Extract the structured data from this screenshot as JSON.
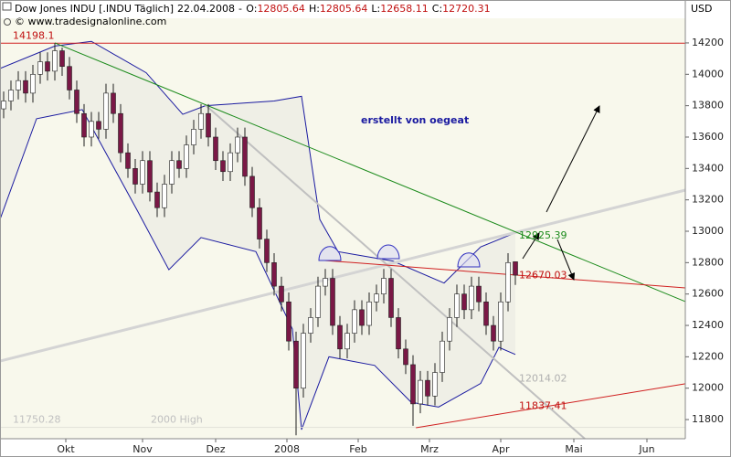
{
  "header": {
    "title": "Dow Jones INDU [.INDU Täglich]",
    "date": "22.04.2008",
    "separator": "-",
    "ohlc_labels": [
      "O:",
      "H:",
      "L:",
      "C:"
    ],
    "copyright": "© www.tradesignalonline.com"
  },
  "chart_data": {
    "type": "candlestick",
    "ylabel": "USD",
    "note": "erstellt von oegeat",
    "xlim": [
      -0.5,
      93.25
    ],
    "xticks": [
      {
        "value": 8.5,
        "label": "Okt"
      },
      {
        "value": 19,
        "label": "Nov"
      },
      {
        "value": 29,
        "label": "Dez"
      },
      {
        "value": 38.75,
        "label": "2008"
      },
      {
        "value": 48.5,
        "label": "Feb"
      },
      {
        "value": 58.25,
        "label": "Mrz"
      },
      {
        "value": 68,
        "label": "Apr"
      },
      {
        "value": 78,
        "label": "Mai"
      },
      {
        "value": 88,
        "label": "Jun"
      }
    ],
    "ylim": [
      11678,
      14357
    ],
    "yticks": [
      11800,
      12000,
      12200,
      12400,
      12600,
      12800,
      13000,
      13200,
      13400,
      13600,
      13800,
      14000,
      14200
    ],
    "grid": false,
    "up_color": "#ffffff",
    "down_color": "#7a1846",
    "outline_color": "#202020",
    "series": {
      "open": [
        13780,
        13830,
        13900,
        13960,
        13880,
        14000,
        14080,
        14020,
        14150,
        14050,
        13900,
        13750,
        13600,
        13700,
        13650,
        13880,
        13750,
        13500,
        13400,
        13300,
        13450,
        13250,
        13150,
        13300,
        13450,
        13400,
        13550,
        13650,
        13750,
        13600,
        13450,
        13380,
        13500,
        13600,
        13350,
        13150,
        12950,
        12800,
        12650,
        12550,
        12300,
        12000,
        12350,
        12450,
        12650,
        12700,
        12400,
        12250,
        12350,
        12500,
        12400,
        12550,
        12600,
        12700,
        12450,
        12250,
        12150,
        11900,
        12050,
        11950,
        12100,
        12300,
        12450,
        12600,
        12500,
        12650,
        12550,
        12400,
        12300,
        12550,
        12805.64
      ],
      "high": [
        13890,
        13960,
        14020,
        14020,
        14060,
        14140,
        14140,
        14198.1,
        14170,
        14110,
        13960,
        13810,
        13760,
        13760,
        13940,
        13940,
        13810,
        13560,
        13460,
        13510,
        13510,
        13310,
        13360,
        13510,
        13510,
        13610,
        13710,
        13810,
        13810,
        13660,
        13510,
        13560,
        13660,
        13660,
        13410,
        13210,
        13010,
        12860,
        12710,
        12610,
        12360,
        12410,
        12510,
        12710,
        12760,
        12760,
        12460,
        12410,
        12560,
        12560,
        12610,
        12660,
        12760,
        12760,
        12510,
        12310,
        12210,
        12110,
        12110,
        12160,
        12360,
        12510,
        12660,
        12660,
        12710,
        12710,
        12610,
        12460,
        12610,
        12860,
        12805.64
      ],
      "low": [
        13720,
        13770,
        13840,
        13820,
        13820,
        13940,
        13960,
        13960,
        13990,
        13840,
        13690,
        13540,
        13540,
        13590,
        13590,
        13690,
        13440,
        13340,
        13240,
        13240,
        13190,
        13090,
        13090,
        13240,
        13340,
        13340,
        13490,
        13590,
        13540,
        13390,
        13320,
        13320,
        13440,
        13290,
        13090,
        12890,
        12740,
        12590,
        12490,
        12240,
        11700,
        11940,
        12290,
        12390,
        12590,
        12340,
        12190,
        12190,
        12290,
        12340,
        12340,
        12490,
        12540,
        12390,
        12190,
        12090,
        11760,
        11840,
        11890,
        11890,
        12040,
        12240,
        12390,
        12440,
        12440,
        12490,
        12340,
        12240,
        12240,
        12490,
        12658.11
      ],
      "close": [
        13830,
        13900,
        13960,
        13880,
        14000,
        14080,
        14020,
        14150,
        14050,
        13900,
        13750,
        13600,
        13700,
        13650,
        13880,
        13750,
        13500,
        13400,
        13300,
        13450,
        13250,
        13150,
        13300,
        13450,
        13400,
        13550,
        13650,
        13750,
        13600,
        13450,
        13380,
        13500,
        13600,
        13350,
        13150,
        12950,
        12800,
        12650,
        12550,
        12300,
        12000,
        12350,
        12450,
        12650,
        12700,
        12400,
        12250,
        12350,
        12500,
        12400,
        12550,
        12600,
        12700,
        12450,
        12250,
        12150,
        11900,
        12050,
        11950,
        12100,
        12300,
        12450,
        12600,
        12500,
        12650,
        12550,
        12400,
        12300,
        12550,
        12800,
        12720.31
      ]
    },
    "bands": {
      "color": "#1a1aa0",
      "fill": "#efefe6",
      "upper": {
        "x": [
          -0.5,
          7,
          12,
          19.5,
          24.5,
          27.6,
          37,
          40.75,
          43.25,
          45.75,
          53.25,
          60.25,
          65.25,
          70
        ],
        "values": [
          14037,
          14180,
          14210,
          14010,
          13745,
          13800,
          13830,
          13860,
          13075,
          12870,
          12810,
          12670,
          12900,
          12990
        ]
      },
      "lower": {
        "x": [
          -0.5,
          4.5,
          10.75,
          18.25,
          22.6,
          27,
          34.5,
          39.5,
          40.75,
          44.5,
          50.75,
          55.75,
          59.5,
          65.25,
          67.75,
          70
        ],
        "values": [
          13075,
          13717,
          13775,
          13135,
          12755,
          12960,
          12870,
          12377,
          11736,
          12200,
          12145,
          11910,
          11880,
          12030,
          12260,
          12215
        ]
      }
    },
    "lines": [
      {
        "x": [
          -0.5,
          93.25
        ],
        "y": [
          14198.1,
          14198.1
        ],
        "color": "#d02020",
        "width": 1
      },
      {
        "x": [
          -0.5,
          93.25
        ],
        "y": [
          11750.28,
          11750.28
        ],
        "color": "#e2e2d8",
        "width": 1
      },
      {
        "x": [
          -0.5,
          93.25
        ],
        "y": [
          12173,
          13262
        ],
        "color": "#d4d4d4",
        "width": 3
      },
      {
        "x": [
          27.6,
          79.5
        ],
        "y": [
          13804,
          11678
        ],
        "color": "#c0c0c0",
        "width": 2
      },
      {
        "x": [
          7,
          93.25
        ],
        "y": [
          14200,
          12552
        ],
        "color": "#1a8a1a",
        "width": 1
      },
      {
        "x": [
          43.9,
          93.25
        ],
        "y": [
          12814,
          12639
        ],
        "color": "#d02020",
        "width": 1
      },
      {
        "x": [
          56.4,
          93.25
        ],
        "y": [
          11748,
          12028
        ],
        "color": "#d02020",
        "width": 1
      }
    ],
    "annotations": [
      {
        "value": 14198.1,
        "label": "14198.1",
        "color": "#c01010"
      },
      {
        "value": 12925.39,
        "label": "12925.39",
        "color": "#1a8a1a"
      },
      {
        "value": 12670.03,
        "label": "12670.03",
        "color": "#c01010"
      },
      {
        "value": 12014.02,
        "label": "12014.02",
        "color": "#b0b0b0"
      },
      {
        "value": 11837.41,
        "label": "11837.41",
        "color": "#c01010"
      },
      {
        "value": 11750.28,
        "label": "11750.28",
        "color": "#c0c0c0"
      }
    ],
    "annotation_note": "2000 High"
  }
}
